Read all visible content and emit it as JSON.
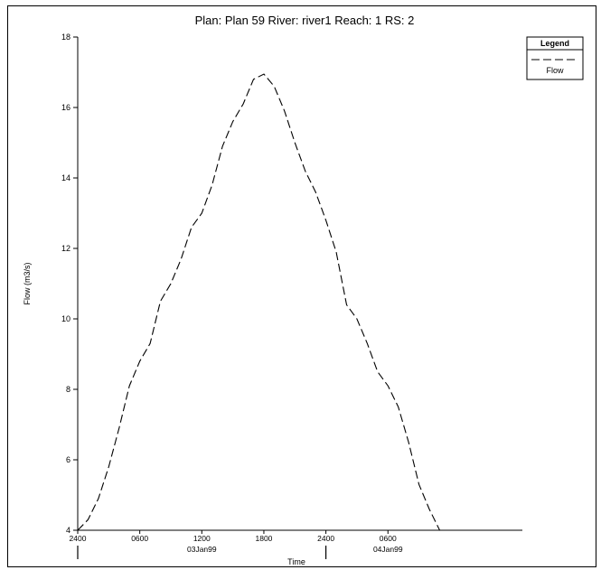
{
  "chart_data": {
    "type": "line",
    "title": "Plan: Plan 59   River: river1   Reach: 1   RS: 2",
    "xlabel": "Time",
    "ylabel": "Flow (m3/s)",
    "ylim": [
      4,
      18
    ],
    "yticks": [
      4,
      6,
      8,
      10,
      12,
      14,
      16,
      18
    ],
    "xlim_hours": [
      0,
      43
    ],
    "xticks": [
      {
        "hour": 0,
        "label": "2400"
      },
      {
        "hour": 6,
        "label": "0600"
      },
      {
        "hour": 12,
        "label": "1200"
      },
      {
        "hour": 18,
        "label": "1800"
      },
      {
        "hour": 24,
        "label": "2400"
      },
      {
        "hour": 30,
        "label": "0600"
      }
    ],
    "date_labels": [
      {
        "hour": 12,
        "label": "03Jan99"
      },
      {
        "hour": 30,
        "label": "04Jan99"
      }
    ],
    "day_markers": [
      0,
      24
    ],
    "legend": {
      "title": "Legend",
      "position": "top-right"
    },
    "grid": false,
    "series": [
      {
        "name": "Flow",
        "color": "#000000",
        "style": "dashed",
        "x": [
          0,
          1,
          2,
          3,
          4,
          5,
          6,
          7,
          8,
          9,
          10,
          11,
          12,
          13,
          14,
          15,
          16,
          17,
          18,
          19,
          20,
          21,
          22,
          23,
          24,
          25,
          26,
          27,
          28,
          29,
          30,
          31,
          32,
          33,
          34,
          35,
          36,
          37,
          38,
          39,
          40,
          41,
          42,
          43
        ],
        "values": [
          4.0,
          4.3,
          4.9,
          5.8,
          6.9,
          8.1,
          8.8,
          9.3,
          10.5,
          11.0,
          11.7,
          12.6,
          13.0,
          13.8,
          14.9,
          15.6,
          16.1,
          16.8,
          16.95,
          16.6,
          15.9,
          15.0,
          14.2,
          13.6,
          12.8,
          11.9,
          10.4,
          10.0,
          9.3,
          8.5,
          8.1,
          7.5,
          6.5,
          5.3,
          4.6,
          4.0,
          4.0,
          4.0,
          4.0,
          4.0,
          4.0,
          4.0,
          4.0,
          4.0
        ]
      }
    ]
  }
}
